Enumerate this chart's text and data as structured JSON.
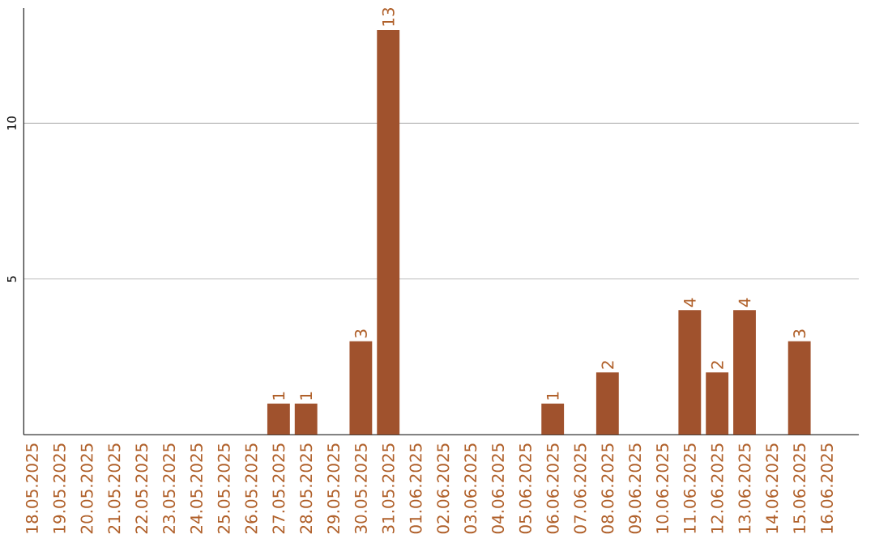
{
  "chart_data": {
    "type": "bar",
    "categories": [
      "18.05.2025",
      "19.05.2025",
      "20.05.2025",
      "21.05.2025",
      "22.05.2025",
      "23.05.2025",
      "24.05.2025",
      "25.05.2025",
      "26.05.2025",
      "27.05.2025",
      "28.05.2025",
      "29.05.2025",
      "30.05.2025",
      "31.05.2025",
      "01.06.2025",
      "02.06.2025",
      "03.06.2025",
      "04.06.2025",
      "05.06.2025",
      "06.06.2025",
      "07.06.2025",
      "08.06.2025",
      "09.06.2025",
      "10.06.2025",
      "11.06.2025",
      "12.06.2025",
      "13.06.2025",
      "14.06.2025",
      "15.06.2025",
      "16.06.2025"
    ],
    "values": [
      0,
      0,
      0,
      0,
      0,
      0,
      0,
      0,
      0,
      1,
      1,
      0,
      3,
      13,
      0,
      0,
      0,
      0,
      0,
      1,
      0,
      2,
      0,
      0,
      4,
      2,
      4,
      0,
      3,
      0
    ],
    "value_labels": [
      null,
      null,
      null,
      null,
      null,
      null,
      null,
      null,
      null,
      "1",
      "1",
      null,
      "3",
      "13",
      null,
      null,
      null,
      null,
      null,
      "1",
      null,
      "2",
      null,
      null,
      "4",
      "2",
      "4",
      null,
      "3",
      null
    ],
    "color": "#a0522d",
    "ylim": [
      0,
      13.7
    ],
    "yticks": [
      5,
      10
    ],
    "grid": "y"
  }
}
